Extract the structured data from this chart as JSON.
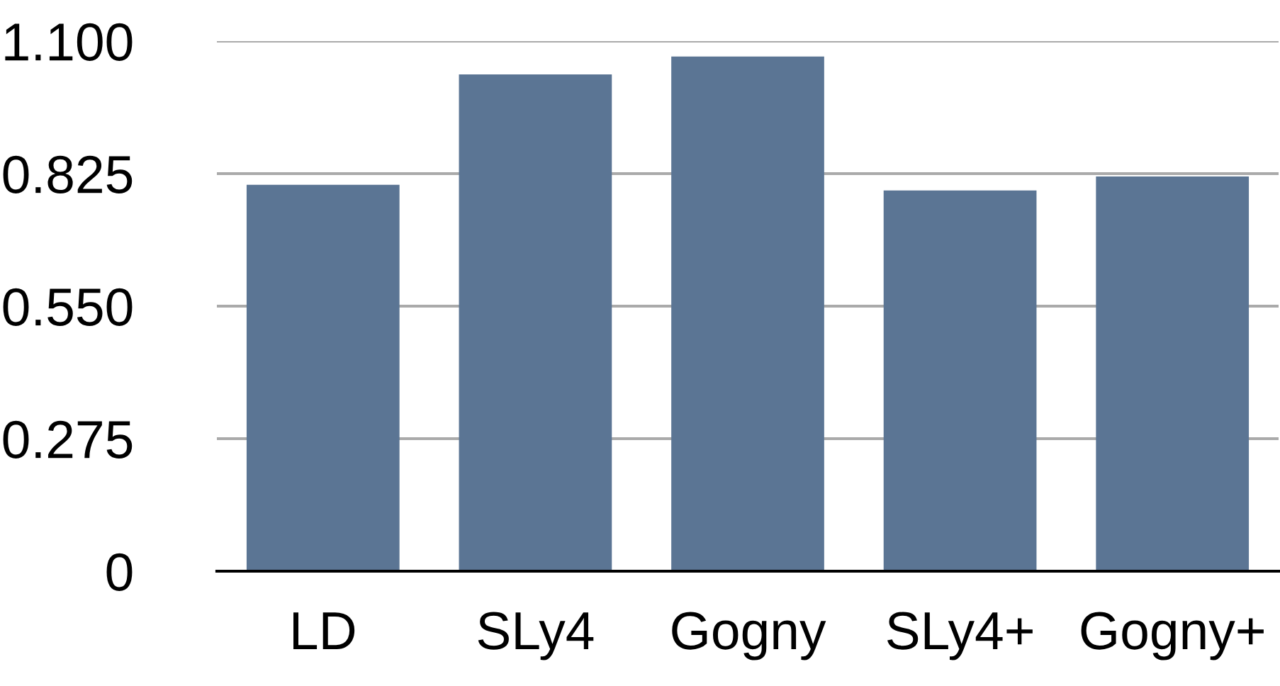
{
  "chart_data": {
    "type": "bar",
    "categories": [
      "LD",
      "SLy4",
      "Gogny",
      "SLy4+",
      "Gogny+"
    ],
    "values": [
      0.802,
      1.031,
      1.068,
      0.79,
      0.819
    ],
    "color": "#5b7594",
    "ylim": [
      0,
      1.1
    ],
    "yticks": [
      0,
      0.275,
      {
        "value": 0.55,
        "label": "0.550"
      },
      0.825,
      {
        "value": 1.1,
        "label": "1.100"
      }
    ],
    "grid": "y"
  }
}
